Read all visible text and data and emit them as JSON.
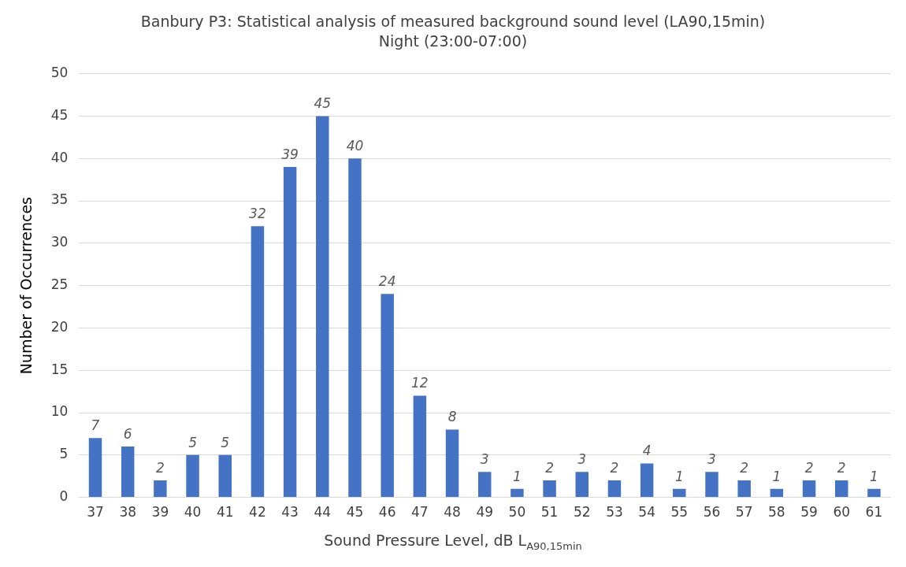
{
  "chart_data": {
    "type": "bar",
    "title": "Banbury P3: Statistical analysis of measured background sound level (LA90,15min)",
    "subtitle": "Night (23:00-07:00)",
    "xlabel": "Sound Pressure Level, dB L$_{A90,15min}$",
    "ylabel": "Number of Occurrences",
    "categories": [
      "37",
      "38",
      "39",
      "40",
      "41",
      "42",
      "43",
      "44",
      "45",
      "46",
      "47",
      "48",
      "49",
      "50",
      "51",
      "52",
      "53",
      "54",
      "55",
      "56",
      "57",
      "58",
      "59",
      "60",
      "61"
    ],
    "values": [
      7,
      6,
      2,
      5,
      5,
      32,
      39,
      45,
      40,
      24,
      12,
      8,
      3,
      1,
      2,
      3,
      2,
      4,
      1,
      3,
      2,
      1,
      2,
      2,
      1
    ],
    "color": "#4472c4",
    "ylim": [
      0,
      50
    ],
    "yticks": [
      0,
      5,
      10,
      15,
      20,
      25,
      30,
      35,
      40,
      45,
      50
    ],
    "grid": "y",
    "data_labels": true
  }
}
